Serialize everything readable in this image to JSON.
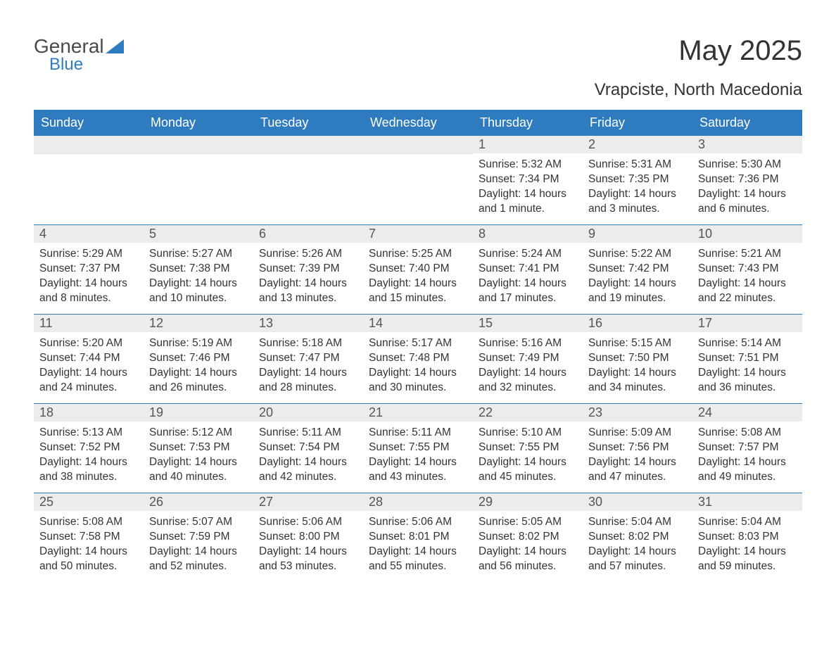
{
  "brand": {
    "part1": "General",
    "part2": "Blue",
    "color1": "#4a4a4a",
    "color2": "#2e7bc0",
    "triangle_color": "#2e7bc0"
  },
  "title": "May 2025",
  "location": "Vrapciste, North Macedonia",
  "style": {
    "header_bg": "#2e7bc0",
    "header_fg": "#ffffff",
    "daynum_bg": "#ececec",
    "daynum_fg": "#555555",
    "text_color": "#333333",
    "rule_color": "#2e7bc0",
    "background": "#ffffff",
    "title_fontsize": 40,
    "location_fontsize": 24,
    "header_fontsize": 18,
    "daynum_fontsize": 18,
    "body_fontsize": 15.5
  },
  "weekdays": [
    "Sunday",
    "Monday",
    "Tuesday",
    "Wednesday",
    "Thursday",
    "Friday",
    "Saturday"
  ],
  "weeks": [
    [
      null,
      null,
      null,
      null,
      {
        "n": "1",
        "sunrise": "5:32 AM",
        "sunset": "7:34 PM",
        "daylight": "14 hours and 1 minute."
      },
      {
        "n": "2",
        "sunrise": "5:31 AM",
        "sunset": "7:35 PM",
        "daylight": "14 hours and 3 minutes."
      },
      {
        "n": "3",
        "sunrise": "5:30 AM",
        "sunset": "7:36 PM",
        "daylight": "14 hours and 6 minutes."
      }
    ],
    [
      {
        "n": "4",
        "sunrise": "5:29 AM",
        "sunset": "7:37 PM",
        "daylight": "14 hours and 8 minutes."
      },
      {
        "n": "5",
        "sunrise": "5:27 AM",
        "sunset": "7:38 PM",
        "daylight": "14 hours and 10 minutes."
      },
      {
        "n": "6",
        "sunrise": "5:26 AM",
        "sunset": "7:39 PM",
        "daylight": "14 hours and 13 minutes."
      },
      {
        "n": "7",
        "sunrise": "5:25 AM",
        "sunset": "7:40 PM",
        "daylight": "14 hours and 15 minutes."
      },
      {
        "n": "8",
        "sunrise": "5:24 AM",
        "sunset": "7:41 PM",
        "daylight": "14 hours and 17 minutes."
      },
      {
        "n": "9",
        "sunrise": "5:22 AM",
        "sunset": "7:42 PM",
        "daylight": "14 hours and 19 minutes."
      },
      {
        "n": "10",
        "sunrise": "5:21 AM",
        "sunset": "7:43 PM",
        "daylight": "14 hours and 22 minutes."
      }
    ],
    [
      {
        "n": "11",
        "sunrise": "5:20 AM",
        "sunset": "7:44 PM",
        "daylight": "14 hours and 24 minutes."
      },
      {
        "n": "12",
        "sunrise": "5:19 AM",
        "sunset": "7:46 PM",
        "daylight": "14 hours and 26 minutes."
      },
      {
        "n": "13",
        "sunrise": "5:18 AM",
        "sunset": "7:47 PM",
        "daylight": "14 hours and 28 minutes."
      },
      {
        "n": "14",
        "sunrise": "5:17 AM",
        "sunset": "7:48 PM",
        "daylight": "14 hours and 30 minutes."
      },
      {
        "n": "15",
        "sunrise": "5:16 AM",
        "sunset": "7:49 PM",
        "daylight": "14 hours and 32 minutes."
      },
      {
        "n": "16",
        "sunrise": "5:15 AM",
        "sunset": "7:50 PM",
        "daylight": "14 hours and 34 minutes."
      },
      {
        "n": "17",
        "sunrise": "5:14 AM",
        "sunset": "7:51 PM",
        "daylight": "14 hours and 36 minutes."
      }
    ],
    [
      {
        "n": "18",
        "sunrise": "5:13 AM",
        "sunset": "7:52 PM",
        "daylight": "14 hours and 38 minutes."
      },
      {
        "n": "19",
        "sunrise": "5:12 AM",
        "sunset": "7:53 PM",
        "daylight": "14 hours and 40 minutes."
      },
      {
        "n": "20",
        "sunrise": "5:11 AM",
        "sunset": "7:54 PM",
        "daylight": "14 hours and 42 minutes."
      },
      {
        "n": "21",
        "sunrise": "5:11 AM",
        "sunset": "7:55 PM",
        "daylight": "14 hours and 43 minutes."
      },
      {
        "n": "22",
        "sunrise": "5:10 AM",
        "sunset": "7:55 PM",
        "daylight": "14 hours and 45 minutes."
      },
      {
        "n": "23",
        "sunrise": "5:09 AM",
        "sunset": "7:56 PM",
        "daylight": "14 hours and 47 minutes."
      },
      {
        "n": "24",
        "sunrise": "5:08 AM",
        "sunset": "7:57 PM",
        "daylight": "14 hours and 49 minutes."
      }
    ],
    [
      {
        "n": "25",
        "sunrise": "5:08 AM",
        "sunset": "7:58 PM",
        "daylight": "14 hours and 50 minutes."
      },
      {
        "n": "26",
        "sunrise": "5:07 AM",
        "sunset": "7:59 PM",
        "daylight": "14 hours and 52 minutes."
      },
      {
        "n": "27",
        "sunrise": "5:06 AM",
        "sunset": "8:00 PM",
        "daylight": "14 hours and 53 minutes."
      },
      {
        "n": "28",
        "sunrise": "5:06 AM",
        "sunset": "8:01 PM",
        "daylight": "14 hours and 55 minutes."
      },
      {
        "n": "29",
        "sunrise": "5:05 AM",
        "sunset": "8:02 PM",
        "daylight": "14 hours and 56 minutes."
      },
      {
        "n": "30",
        "sunrise": "5:04 AM",
        "sunset": "8:02 PM",
        "daylight": "14 hours and 57 minutes."
      },
      {
        "n": "31",
        "sunrise": "5:04 AM",
        "sunset": "8:03 PM",
        "daylight": "14 hours and 59 minutes."
      }
    ]
  ],
  "labels": {
    "sunrise": "Sunrise: ",
    "sunset": "Sunset: ",
    "daylight": "Daylight: "
  }
}
